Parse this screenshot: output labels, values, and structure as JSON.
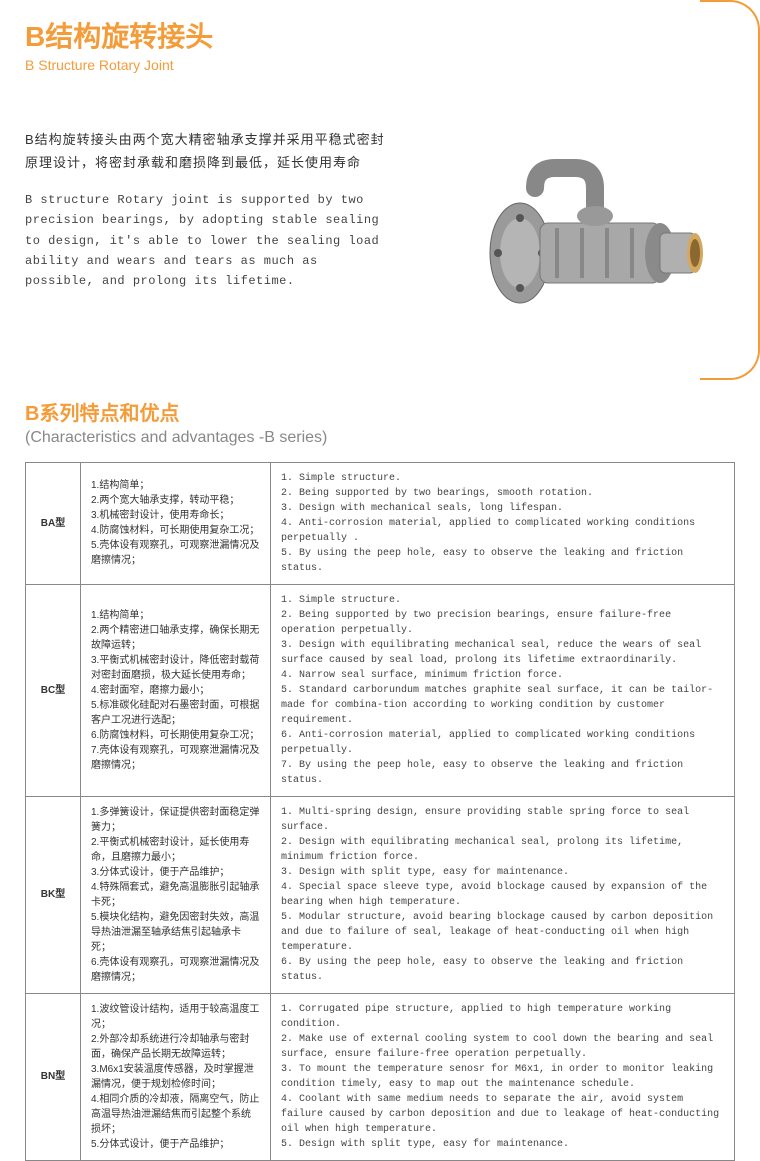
{
  "title": {
    "cn": "B结构旋转接头",
    "en": "B Structure Rotary Joint"
  },
  "intro": {
    "cn": "B结构旋转接头由两个宽大精密轴承支撑并采用平稳式密封原理设计，将密封承载和磨损降到最低，延长使用寿命",
    "en": "B structure Rotary joint is supported by two precision bearings, by adopting stable sealing to design, it's able to lower the sealing load ability and wears and tears as much as possible, and prolong its lifetime."
  },
  "section": {
    "cn": "B系列特点和优点",
    "en": "(Characteristics and advantages -B series)"
  },
  "rows": [
    {
      "type": "BA型",
      "cn": "1.结构简单；\n2.两个宽大轴承支撑，转动平稳；\n3.机械密封设计，使用寿命长；\n4.防腐蚀材料，可长期使用复杂工况；\n5.壳体设有观察孔，可观察泄漏情况及磨擦情况；",
      "en": "1. Simple structure.\n2. Being supported by two bearings, smooth rotation.\n3. Design with mechanical seals, long lifespan.\n4. Anti-corrosion material, applied to complicated working conditions perpetually .\n5. By using the peep hole, easy to observe the leaking and friction status."
    },
    {
      "type": "BC型",
      "cn": "1.结构简单；\n2.两个精密进口轴承支撑，确保长期无故障运转；\n3.平衡式机械密封设计，降低密封载荷对密封面磨损，极大延长使用寿命；\n4.密封面窄，磨擦力最小；\n5.标准碳化硅配对石墨密封面，可根据客户工况进行选配；\n6.防腐蚀材料，可长期使用复杂工况；\n7.壳体设有观察孔，可观察泄漏情况及磨擦情况；",
      "en": "1. Simple structure.\n2. Being supported by two precision bearings, ensure failure-free operation perpetually.\n3. Design with equilibrating mechanical seal, reduce the wears of seal surface caused by seal load, prolong its lifetime extraordinarily.\n4. Narrow seal surface, minimum friction force.\n5. Standard carborundum matches graphite seal surface, it can be tailor-made for combina-tion according to working condition by customer requirement.\n6. Anti-corrosion material, applied to complicated working conditions perpetually.\n7. By using the peep hole, easy to observe the leaking and friction status."
    },
    {
      "type": "BK型",
      "cn": "1.多弹簧设计，保证提供密封面稳定弹簧力；\n2.平衡式机械密封设计，延长使用寿命，且磨擦力最小；\n3.分体式设计，便于产品维护；\n4.特殊隔套式，避免高温膨胀引起轴承卡死；\n5.模块化结构，避免因密封失效，高温导热油泄漏至轴承结焦引起轴承卡死；\n6.壳体设有观察孔，可观察泄漏情况及磨擦情况；",
      "en": "1. Multi-spring design, ensure providing stable spring force to seal surface.\n2. Design with equilibrating mechanical seal, prolong its lifetime, minimum friction force.\n3. Design with split type, easy for maintenance.\n4. Special space sleeve type, avoid blockage caused by expansion of the bearing when high temperature.\n5. Modular structure, avoid bearing blockage caused by carbon deposition and due to failure of seal, leakage of heat-conducting oil when high temperature.\n6. By using the peep hole, easy to observe the leaking and friction status."
    },
    {
      "type": "BN型",
      "cn": "1.波纹管设计结构，适用于较高温度工况；\n2.外部冷却系统进行冷却轴承与密封面，确保产品长期无故障运转；\n3.M6x1安装温度传感器，及时掌握泄漏情况，便于规划检修时间；\n4.相同介质的冷却液，隔离空气，防止高温导热油泄漏结焦而引起整个系统损坏；\n5.分体式设计，便于产品维护；",
      "en": "1. Corrugated pipe structure, applied to high temperature working condition.\n2. Make use of external cooling system to cool down the bearing and seal surface, ensure failure-free operation perpetually.\n3. To mount the temperature senosr for M6x1, in order to monitor leaking condition timely, easy to map out the maintenance schedule.\n4. Coolant with same medium needs to separate the air, avoid system failure caused by carbon deposition and due to leakage of heat-conducting oil when high temperature.\n5. Design with split type, easy for maintenance."
    }
  ],
  "colors": {
    "accent": "#f39c3a",
    "text": "#333333",
    "border": "#888888"
  }
}
